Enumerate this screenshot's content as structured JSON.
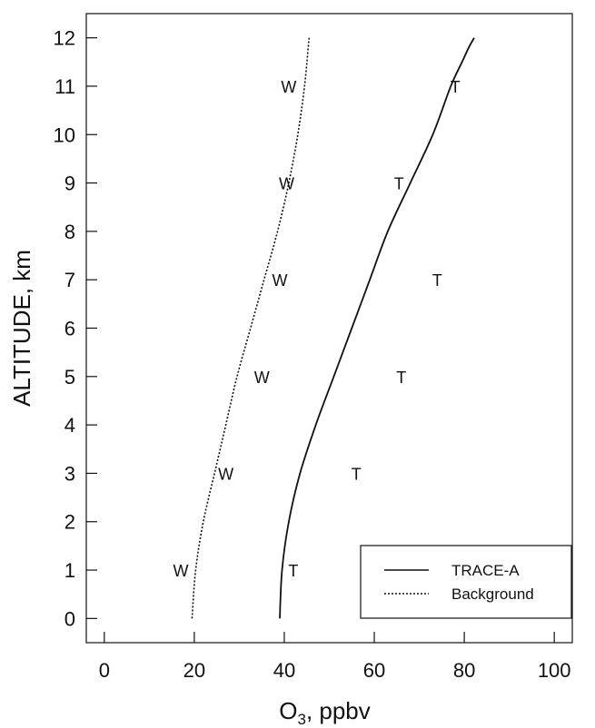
{
  "chart_data": {
    "type": "line",
    "title": "",
    "xlabel": {
      "main": "O",
      "subscript": "3",
      "rest": ", ppbv"
    },
    "ylabel": "ALTITUDE, km",
    "xlim": [
      -4,
      104
    ],
    "ylim": [
      -0.5,
      12.5
    ],
    "x_ticks": [
      0,
      20,
      40,
      60,
      80,
      100
    ],
    "y_ticks": [
      0,
      1,
      2,
      3,
      4,
      5,
      6,
      7,
      8,
      9,
      10,
      11,
      12
    ],
    "grid": false,
    "legend_position": "bottom-right",
    "series": [
      {
        "name": "TRACE-A",
        "style": "solid",
        "color": "#111111",
        "x": [
          39,
          39.5,
          41,
          43.5,
          47,
          51,
          55,
          59,
          63,
          68,
          73,
          77,
          79.5,
          81,
          82.2
        ],
        "y": [
          0,
          1,
          2,
          3,
          4,
          5,
          6,
          7,
          8,
          9,
          10,
          11,
          11.5,
          11.8,
          12
        ]
      },
      {
        "name": "Background",
        "style": "dotted",
        "color": "#111111",
        "x": [
          19.5,
          20.3,
          22,
          24.5,
          27,
          29.5,
          32.5,
          35.5,
          38.5,
          41,
          43,
          44.5,
          45.5
        ],
        "y": [
          0,
          1,
          2,
          3,
          4,
          5,
          6,
          7,
          8,
          9,
          10,
          11,
          12
        ]
      }
    ],
    "markers": [
      {
        "label": "W",
        "x": 17,
        "y": 1
      },
      {
        "label": "W",
        "x": 27,
        "y": 3
      },
      {
        "label": "W",
        "x": 35,
        "y": 5
      },
      {
        "label": "W",
        "x": 39,
        "y": 7
      },
      {
        "label": "W",
        "x": 40.5,
        "y": 9
      },
      {
        "label": "W",
        "x": 41,
        "y": 11
      },
      {
        "label": "T",
        "x": 42,
        "y": 1
      },
      {
        "label": "T",
        "x": 56,
        "y": 3
      },
      {
        "label": "T",
        "x": 66,
        "y": 5
      },
      {
        "label": "T",
        "x": 74,
        "y": 7
      },
      {
        "label": "T",
        "x": 65.5,
        "y": 9
      },
      {
        "label": "T",
        "x": 78,
        "y": 11
      }
    ]
  }
}
